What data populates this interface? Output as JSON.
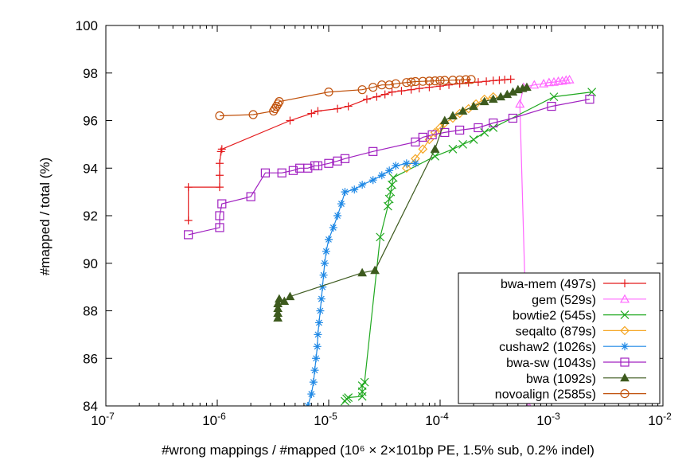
{
  "chart_data": {
    "type": "line",
    "xscale": "log",
    "xlabel": "#wrong mappings / #mapped (10⁶ × 2×101bp PE, 1.5% sub, 0.2% indel)",
    "ylabel": "#mapped / total (%)",
    "xlim": [
      1e-07,
      0.01
    ],
    "ylim": [
      84,
      100
    ],
    "x_ticks": [
      1e-07,
      1e-06,
      1e-05,
      0.0001,
      0.001,
      0.01
    ],
    "x_tick_labels": [
      "10-7",
      "10-6",
      "10-5",
      "10-4",
      "10-3",
      "10-2"
    ],
    "y_ticks": [
      84,
      86,
      88,
      90,
      92,
      94,
      96,
      98,
      100
    ],
    "y_tick_labels": [
      "84",
      "86",
      "88",
      "90",
      "92",
      "94",
      "96",
      "98",
      "100"
    ],
    "grid": false,
    "legend_position": "bottom-right",
    "series": [
      {
        "name": "bwa-mem (497s)",
        "color": "#e41a1c",
        "marker": "plus",
        "points": [
          [
            5.5e-07,
            91.8
          ],
          [
            5.5e-07,
            93.2
          ],
          [
            1.05e-06,
            93.2
          ],
          [
            1.05e-06,
            93.7
          ],
          [
            1.05e-06,
            94.2
          ],
          [
            1.08e-06,
            94.7
          ],
          [
            1.1e-06,
            94.8
          ],
          [
            4.5e-06,
            96.0
          ],
          [
            7e-06,
            96.3
          ],
          [
            8e-06,
            96.4
          ],
          [
            1.2e-05,
            96.5
          ],
          [
            1.5e-05,
            96.6
          ],
          [
            2.2e-05,
            96.9
          ],
          [
            2.7e-05,
            97.0
          ],
          [
            3.2e-05,
            97.1
          ],
          [
            3.7e-05,
            97.2
          ],
          [
            4.5e-05,
            97.25
          ],
          [
            5.5e-05,
            97.3
          ],
          [
            6.5e-05,
            97.35
          ],
          [
            8e-05,
            97.4
          ],
          [
            0.0001,
            97.45
          ],
          [
            0.00012,
            97.5
          ],
          [
            0.00015,
            97.55
          ],
          [
            0.00018,
            97.6
          ],
          [
            0.00022,
            97.62
          ],
          [
            0.00026,
            97.65
          ],
          [
            0.0003,
            97.68
          ],
          [
            0.00034,
            97.7
          ],
          [
            0.00038,
            97.72
          ],
          [
            0.00043,
            97.74
          ]
        ]
      },
      {
        "name": "gem (529s)",
        "color": "#ff66ff",
        "marker": "triangle",
        "points": [
          [
            0.00062,
            84.0
          ],
          [
            0.00052,
            96.7
          ],
          [
            0.00056,
            97.4
          ],
          [
            0.0007,
            97.5
          ],
          [
            0.00085,
            97.55
          ],
          [
            0.00095,
            97.6
          ],
          [
            0.00105,
            97.62
          ],
          [
            0.00115,
            97.65
          ],
          [
            0.00125,
            97.67
          ],
          [
            0.00135,
            97.7
          ],
          [
            0.00145,
            97.72
          ]
        ]
      },
      {
        "name": "bowtie2 (545s)",
        "color": "#1fa81f",
        "marker": "cross",
        "points": [
          [
            1.4e-05,
            84.2
          ],
          [
            1.45e-05,
            84.3
          ],
          [
            1.5e-05,
            84.35
          ],
          [
            2e-05,
            84.4
          ],
          [
            2e-05,
            84.6
          ],
          [
            2e-05,
            84.85
          ],
          [
            2.1e-05,
            85.0
          ],
          [
            2.9e-05,
            91.1
          ],
          [
            3.4e-05,
            92.4
          ],
          [
            3.5e-05,
            92.7
          ],
          [
            3.6e-05,
            93.0
          ],
          [
            3.7e-05,
            93.3
          ],
          [
            3.8e-05,
            93.6
          ],
          [
            9e-05,
            94.5
          ],
          [
            0.00013,
            94.8
          ],
          [
            0.00016,
            95.0
          ],
          [
            0.0002,
            95.2
          ],
          [
            0.00025,
            95.5
          ],
          [
            0.0003,
            95.7
          ],
          [
            0.00105,
            97.0
          ],
          [
            0.0023,
            97.2
          ]
        ]
      },
      {
        "name": "seqalto (879s)",
        "color": "#f5a623",
        "marker": "diamond",
        "points": [
          [
            5e-05,
            94.0
          ],
          [
            6e-05,
            94.4
          ],
          [
            7e-05,
            94.8
          ],
          [
            8e-05,
            95.2
          ],
          [
            9e-05,
            95.5
          ],
          [
            0.0001,
            95.7
          ],
          [
            0.00011,
            95.9
          ],
          [
            0.00013,
            96.1
          ],
          [
            0.00015,
            96.3
          ],
          [
            0.00018,
            96.5
          ],
          [
            0.00021,
            96.7
          ],
          [
            0.00025,
            96.9
          ],
          [
            0.0003,
            97.0
          ]
        ]
      },
      {
        "name": "cushaw2 (1026s)",
        "color": "#1e88e5",
        "marker": "star",
        "points": [
          [
            6.5e-06,
            84.0
          ],
          [
            7e-06,
            84.5
          ],
          [
            7.3e-06,
            85.0
          ],
          [
            7.5e-06,
            85.5
          ],
          [
            7.7e-06,
            86.0
          ],
          [
            7.9e-06,
            86.5
          ],
          [
            8e-06,
            87.0
          ],
          [
            8.2e-06,
            87.5
          ],
          [
            8.4e-06,
            88.0
          ],
          [
            8.6e-06,
            88.5
          ],
          [
            8.8e-06,
            89.0
          ],
          [
            9e-06,
            89.5
          ],
          [
            9.2e-06,
            90.0
          ],
          [
            9.5e-06,
            90.5
          ],
          [
            1e-05,
            91.0
          ],
          [
            1.1e-05,
            91.5
          ],
          [
            1.2e-05,
            92.0
          ],
          [
            1.3e-05,
            92.5
          ],
          [
            1.4e-05,
            93.0
          ],
          [
            1.7e-05,
            93.1
          ],
          [
            2e-05,
            93.3
          ],
          [
            2.5e-05,
            93.5
          ],
          [
            3e-05,
            93.7
          ],
          [
            3.5e-05,
            93.9
          ],
          [
            4e-05,
            94.1
          ],
          [
            5e-05,
            94.2
          ],
          [
            6e-05,
            94.2
          ]
        ]
      },
      {
        "name": "bwa-sw (1043s)",
        "color": "#a020c0",
        "marker": "square",
        "points": [
          [
            5.5e-07,
            91.2
          ],
          [
            1.05e-06,
            91.5
          ],
          [
            1.05e-06,
            92.0
          ],
          [
            1.1e-06,
            92.5
          ],
          [
            2e-06,
            92.8
          ],
          [
            2.7e-06,
            93.8
          ],
          [
            3.8e-06,
            93.8
          ],
          [
            4.8e-06,
            93.9
          ],
          [
            5.5e-06,
            94.0
          ],
          [
            6.5e-06,
            94.0
          ],
          [
            7.5e-06,
            94.1
          ],
          [
            8e-06,
            94.1
          ],
          [
            1e-05,
            94.2
          ],
          [
            1.2e-05,
            94.3
          ],
          [
            1.4e-05,
            94.4
          ],
          [
            2.5e-05,
            94.7
          ],
          [
            6e-05,
            95.1
          ],
          [
            7e-05,
            95.3
          ],
          [
            8.5e-05,
            95.4
          ],
          [
            0.00011,
            95.5
          ],
          [
            0.00015,
            95.6
          ],
          [
            0.00022,
            95.7
          ],
          [
            0.0003,
            95.9
          ],
          [
            0.00045,
            96.1
          ],
          [
            0.001,
            96.6
          ],
          [
            0.0022,
            96.9
          ]
        ]
      },
      {
        "name": "bwa (1092s)",
        "color": "#3d5a1e",
        "marker": "triangle-filled",
        "points": [
          [
            3.5e-06,
            87.7
          ],
          [
            3.5e-06,
            87.9
          ],
          [
            3.5e-06,
            88.1
          ],
          [
            3.5e-06,
            88.3
          ],
          [
            3.6e-06,
            88.5
          ],
          [
            4e-06,
            88.4
          ],
          [
            4.5e-06,
            88.6
          ],
          [
            2e-05,
            89.6
          ],
          [
            2.6e-05,
            89.7
          ],
          [
            9e-05,
            94.8
          ],
          [
            0.00011,
            96.0
          ],
          [
            0.00013,
            96.2
          ],
          [
            0.00016,
            96.4
          ],
          [
            0.0002,
            96.6
          ],
          [
            0.00025,
            96.8
          ],
          [
            0.0003,
            96.9
          ],
          [
            0.00035,
            97.0
          ],
          [
            0.0004,
            97.1
          ],
          [
            0.00045,
            97.2
          ],
          [
            0.0005,
            97.3
          ],
          [
            0.00055,
            97.35
          ],
          [
            0.0006,
            97.4
          ]
        ]
      },
      {
        "name": "novoalign (2585s)",
        "color": "#c0500a",
        "marker": "circle",
        "points": [
          [
            1.05e-06,
            96.2
          ],
          [
            2.1e-06,
            96.25
          ],
          [
            3.2e-06,
            96.4
          ],
          [
            3.3e-06,
            96.5
          ],
          [
            3.4e-06,
            96.6
          ],
          [
            3.5e-06,
            96.7
          ],
          [
            3.6e-06,
            96.8
          ],
          [
            1e-05,
            97.2
          ],
          [
            2e-05,
            97.3
          ],
          [
            2.5e-05,
            97.4
          ],
          [
            3e-05,
            97.5
          ],
          [
            3.5e-05,
            97.5
          ],
          [
            4e-05,
            97.55
          ],
          [
            5e-05,
            97.6
          ],
          [
            5.5e-05,
            97.62
          ],
          [
            6e-05,
            97.64
          ],
          [
            7e-05,
            97.65
          ],
          [
            8e-05,
            97.66
          ],
          [
            9e-05,
            97.67
          ],
          [
            0.0001,
            97.68
          ],
          [
            0.00011,
            97.69
          ],
          [
            0.00013,
            97.7
          ],
          [
            0.00015,
            97.71
          ],
          [
            0.00017,
            97.72
          ],
          [
            0.00019,
            97.73
          ]
        ]
      }
    ]
  }
}
